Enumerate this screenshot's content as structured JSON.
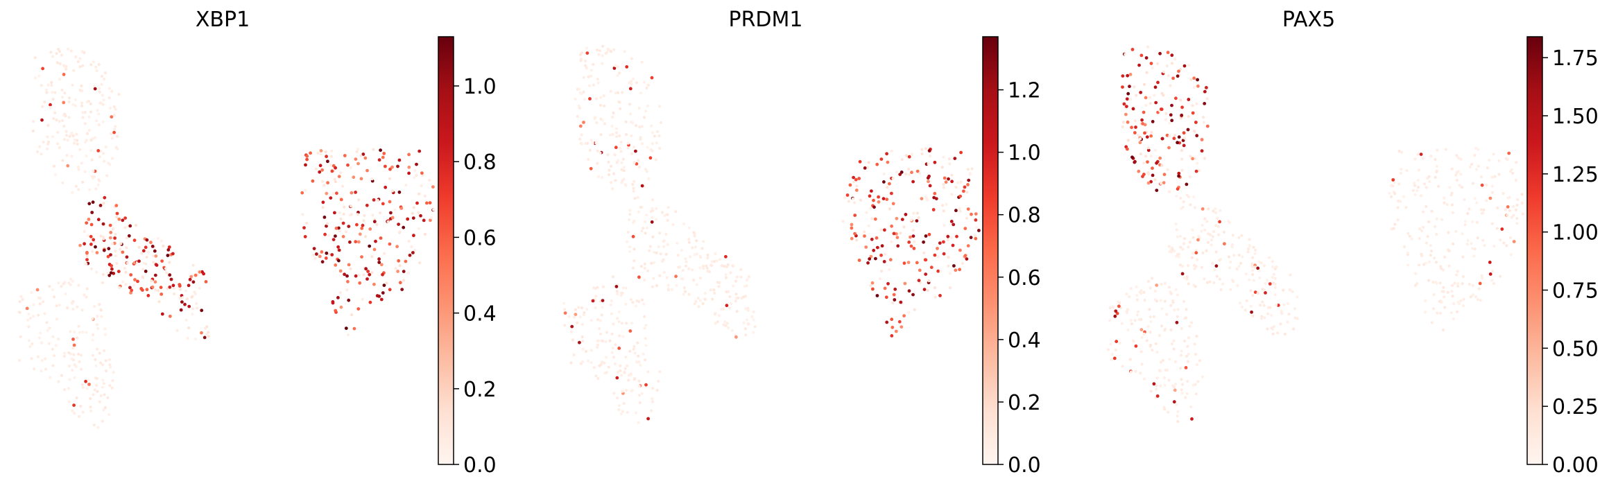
{
  "chart_data": [
    {
      "type": "scatter",
      "title": "XBP1",
      "xlabel": "",
      "ylabel": "",
      "colormap": "Reds",
      "colorbar": {
        "min": 0.0,
        "max": 1.13,
        "ticks": [
          "0.0",
          "0.2",
          "0.4",
          "0.6",
          "0.8",
          "1.0"
        ],
        "tick_values": [
          0.0,
          0.2,
          0.4,
          0.6,
          0.8,
          1.0
        ]
      },
      "high_expression_regions": [
        "right-cluster",
        "middle-branch"
      ],
      "seed": 11
    },
    {
      "type": "scatter",
      "title": "PRDM1",
      "xlabel": "",
      "ylabel": "",
      "colormap": "Reds",
      "colorbar": {
        "min": 0.0,
        "max": 1.37,
        "ticks": [
          "0.0",
          "0.2",
          "0.4",
          "0.6",
          "0.8",
          "1.0",
          "1.2"
        ],
        "tick_values": [
          0.0,
          0.2,
          0.4,
          0.6,
          0.8,
          1.0,
          1.2
        ]
      },
      "high_expression_regions": [
        "right-cluster"
      ],
      "seed": 23
    },
    {
      "type": "scatter",
      "title": "PAX5",
      "xlabel": "",
      "ylabel": "",
      "colormap": "Reds",
      "colorbar": {
        "min": 0.0,
        "max": 1.84,
        "ticks": [
          "0.00",
          "0.25",
          "0.50",
          "0.75",
          "1.00",
          "1.25",
          "1.50",
          "1.75"
        ],
        "tick_values": [
          0.0,
          0.25,
          0.5,
          0.75,
          1.0,
          1.25,
          1.5,
          1.75
        ]
      },
      "high_expression_regions": [
        "top-left-cluster"
      ],
      "seed": 37
    }
  ]
}
